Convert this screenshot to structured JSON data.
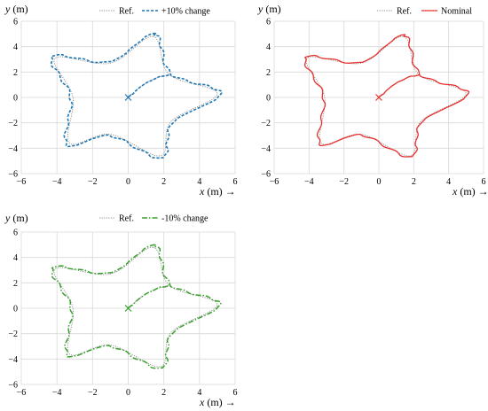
{
  "chart_data": [
    {
      "type": "line",
      "ylabel_var": "y",
      "ylabel_unit": " (m)",
      "xlabel_var": "x",
      "xlabel_unit": " (m) →",
      "xlim": [
        -6,
        6
      ],
      "ylim": [
        -6,
        6
      ],
      "xticks": [
        "−6",
        "−4",
        "−2",
        "0",
        "2",
        "4",
        "6"
      ],
      "yticks": [
        "6",
        "4",
        "2",
        "0",
        "−2",
        "−4",
        "−6"
      ],
      "grid": true,
      "legend_position": "top-right",
      "series": [
        {
          "name": "Ref.",
          "style": "dotted",
          "color": "#8c8c8c",
          "scale": 1.0,
          "start_jitter": false
        },
        {
          "name": "+10% change",
          "style": "dashed",
          "color": "#1f77b4",
          "scale": 1.04,
          "start_jitter": true
        }
      ],
      "start_marker": [
        0,
        0
      ]
    },
    {
      "type": "line",
      "ylabel_var": "y",
      "ylabel_unit": " (m)",
      "xlabel_var": "x",
      "xlabel_unit": " (m) →",
      "xlim": [
        -6,
        6
      ],
      "ylim": [
        -6,
        6
      ],
      "xticks": [
        "−6",
        "−4",
        "−2",
        "0",
        "2",
        "4",
        "6"
      ],
      "yticks": [
        "6",
        "4",
        "2",
        "0",
        "−2",
        "−4",
        "−6"
      ],
      "grid": true,
      "legend_position": "top-right",
      "series": [
        {
          "name": "Ref.",
          "style": "dotted",
          "color": "#8c8c8c",
          "scale": 1.0,
          "start_jitter": false
        },
        {
          "name": "Nominal",
          "style": "solid",
          "color": "#e8312f",
          "scale": 1.02,
          "start_jitter": true
        }
      ],
      "start_marker": [
        0,
        0
      ]
    },
    {
      "type": "line",
      "ylabel_var": "y",
      "ylabel_unit": " (m)",
      "xlabel_var": "x",
      "xlabel_unit": " (m) →",
      "xlim": [
        -6,
        6
      ],
      "ylim": [
        -6,
        6
      ],
      "xticks": [
        "−6",
        "−4",
        "−2",
        "0",
        "2",
        "4",
        "6"
      ],
      "yticks": [
        "6",
        "4",
        "2",
        "0",
        "−2",
        "−4",
        "−6"
      ],
      "grid": true,
      "legend_position": "top-right",
      "series": [
        {
          "name": "Ref.",
          "style": "dotted",
          "color": "#8c8c8c",
          "scale": 1.0,
          "start_jitter": false
        },
        {
          "name": "-10% change",
          "style": "dashdot",
          "color": "#3aa02e",
          "scale": 1.03,
          "start_jitter": true
        }
      ],
      "start_marker": [
        0,
        0
      ]
    }
  ],
  "reference_path": {
    "shape": "five-lobed star",
    "outer_points_xy": [
      [
        1.4,
        4.8
      ],
      [
        -4.1,
        3.1
      ],
      [
        -3.3,
        -3.6
      ],
      [
        1.8,
        -4.6
      ],
      [
        5.0,
        0.3
      ]
    ],
    "inner_points_xy": [
      [
        -1.0,
        2.7
      ],
      [
        -3.1,
        0.0
      ],
      [
        -1.0,
        -2.9
      ],
      [
        2.4,
        -1.9
      ],
      [
        2.3,
        1.8
      ]
    ],
    "start_xy": [
      0,
      0
    ],
    "entry_xy": [
      2.3,
      1.8
    ]
  }
}
